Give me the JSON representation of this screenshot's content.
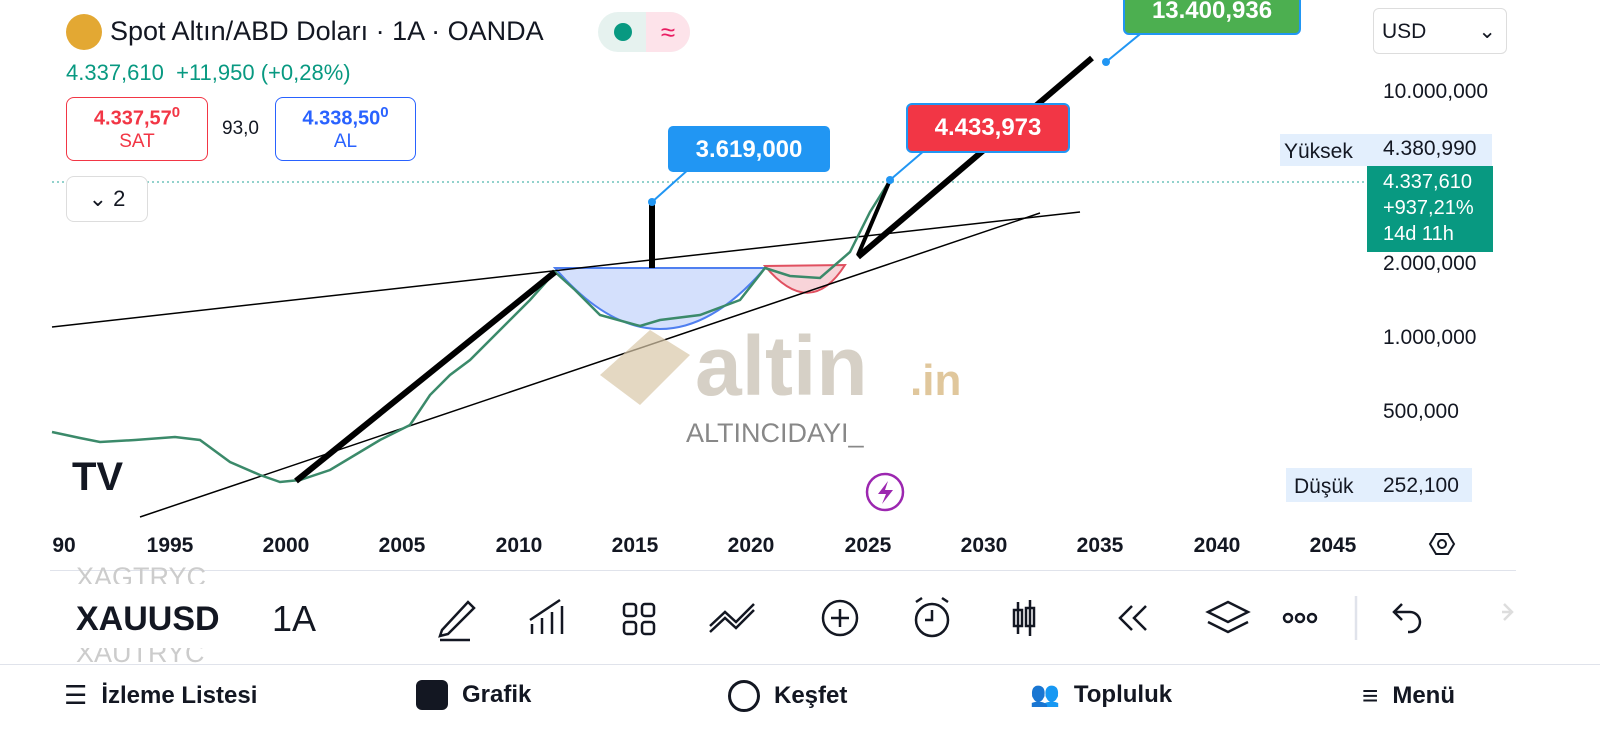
{
  "header": {
    "title": "Spot Altın/ABD Doları · 1A · OANDA",
    "price": "4.337,610",
    "change": "+11,950 (+0,28%)"
  },
  "sell": {
    "price": "4.337,57",
    "price_small": "0",
    "label": "SAT"
  },
  "spread": "93,0",
  "buy": {
    "price": "4.338,50",
    "price_small": "0",
    "label": "AL"
  },
  "indicators_toggle": "2",
  "currency": "USD",
  "price_axis": [
    "10.000,000",
    "2.000,000",
    "1.000,000",
    "500,000"
  ],
  "high": {
    "label": "Yüksek",
    "value": "4.380,990"
  },
  "low": {
    "label": "Düşük",
    "value": "252,100"
  },
  "current": {
    "price": "4.337,610",
    "change": "+937,21%",
    "countdown": "14d 11h"
  },
  "callouts": [
    "13.400,936",
    "3.619,000",
    "4.433,973"
  ],
  "time_axis": [
    "90",
    "1995",
    "2000",
    "2005",
    "2010",
    "2015",
    "2020",
    "2025",
    "2030",
    "2035",
    "2040",
    "2045"
  ],
  "watermark": {
    "brand": "altin",
    "suffix": ".in",
    "author": "ALTINCIDAYI_"
  },
  "toolbar": {
    "symbol_prev": "XAGTRYC",
    "symbol": "XAUUSD",
    "symbol_next": "XAUTRYC",
    "interval": "1A"
  },
  "nav": [
    "İzleme Listesi",
    "Grafik",
    "Keşfet",
    "Topluluk",
    "Menü"
  ]
}
